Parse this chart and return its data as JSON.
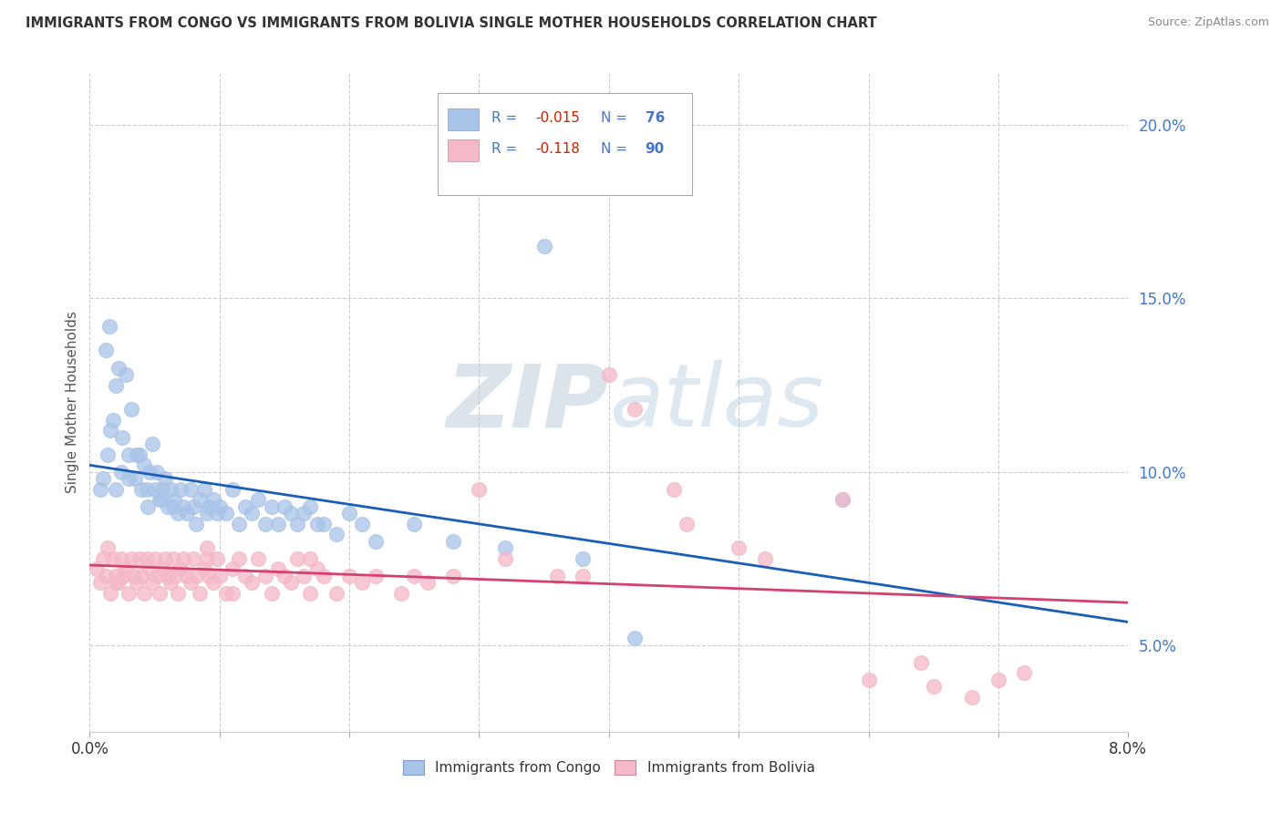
{
  "title": "IMMIGRANTS FROM CONGO VS IMMIGRANTS FROM BOLIVIA SINGLE MOTHER HOUSEHOLDS CORRELATION CHART",
  "source": "Source: ZipAtlas.com",
  "ylabel": "Single Mother Households",
  "xlim": [
    0.0,
    8.0
  ],
  "ylim": [
    2.5,
    21.5
  ],
  "yticks": [
    5.0,
    10.0,
    15.0,
    20.0
  ],
  "xticks_visible": [
    0.0,
    8.0
  ],
  "congo_color": "#a8c4e8",
  "bolivia_color": "#f4b8c8",
  "congo_line_color": "#1a5eb8",
  "bolivia_line_color": "#d44070",
  "legend_text_color": "#4477cc",
  "legend_r_color": "#cc2200",
  "watermark_color": "#c8d8e8",
  "congo_points": [
    [
      0.08,
      9.5
    ],
    [
      0.12,
      13.5
    ],
    [
      0.15,
      14.2
    ],
    [
      0.18,
      11.5
    ],
    [
      0.2,
      12.5
    ],
    [
      0.22,
      13.0
    ],
    [
      0.25,
      11.0
    ],
    [
      0.28,
      12.8
    ],
    [
      0.3,
      10.5
    ],
    [
      0.32,
      11.8
    ],
    [
      0.35,
      9.8
    ],
    [
      0.38,
      10.5
    ],
    [
      0.4,
      9.5
    ],
    [
      0.42,
      10.2
    ],
    [
      0.45,
      9.0
    ],
    [
      0.48,
      10.8
    ],
    [
      0.5,
      9.5
    ],
    [
      0.52,
      10.0
    ],
    [
      0.55,
      9.2
    ],
    [
      0.58,
      9.8
    ],
    [
      0.6,
      9.0
    ],
    [
      0.62,
      9.5
    ],
    [
      0.65,
      9.2
    ],
    [
      0.68,
      8.8
    ],
    [
      0.7,
      9.5
    ],
    [
      0.72,
      9.0
    ],
    [
      0.75,
      8.8
    ],
    [
      0.78,
      9.5
    ],
    [
      0.8,
      9.0
    ],
    [
      0.82,
      8.5
    ],
    [
      0.85,
      9.2
    ],
    [
      0.88,
      9.5
    ],
    [
      0.9,
      8.8
    ],
    [
      0.92,
      9.0
    ],
    [
      0.95,
      9.2
    ],
    [
      0.98,
      8.8
    ],
    [
      1.0,
      9.0
    ],
    [
      1.05,
      8.8
    ],
    [
      1.1,
      9.5
    ],
    [
      1.15,
      8.5
    ],
    [
      1.2,
      9.0
    ],
    [
      1.25,
      8.8
    ],
    [
      1.3,
      9.2
    ],
    [
      1.35,
      8.5
    ],
    [
      1.4,
      9.0
    ],
    [
      1.45,
      8.5
    ],
    [
      1.5,
      9.0
    ],
    [
      1.55,
      8.8
    ],
    [
      1.6,
      8.5
    ],
    [
      1.65,
      8.8
    ],
    [
      1.7,
      9.0
    ],
    [
      1.75,
      8.5
    ],
    [
      1.8,
      8.5
    ],
    [
      1.9,
      8.2
    ],
    [
      2.0,
      8.8
    ],
    [
      2.1,
      8.5
    ],
    [
      2.2,
      8.0
    ],
    [
      2.5,
      8.5
    ],
    [
      2.8,
      8.0
    ],
    [
      3.2,
      7.8
    ],
    [
      3.8,
      7.5
    ],
    [
      4.2,
      5.2
    ],
    [
      3.5,
      16.5
    ],
    [
      5.8,
      9.2
    ],
    [
      0.1,
      9.8
    ],
    [
      0.14,
      10.5
    ],
    [
      0.16,
      11.2
    ],
    [
      0.2,
      9.5
    ],
    [
      0.24,
      10.0
    ],
    [
      0.3,
      9.8
    ],
    [
      0.36,
      10.5
    ],
    [
      0.44,
      9.5
    ],
    [
      0.46,
      10.0
    ],
    [
      0.54,
      9.2
    ],
    [
      0.56,
      9.5
    ],
    [
      0.64,
      9.0
    ]
  ],
  "bolivia_points": [
    [
      0.05,
      7.2
    ],
    [
      0.08,
      6.8
    ],
    [
      0.1,
      7.5
    ],
    [
      0.12,
      7.0
    ],
    [
      0.14,
      7.8
    ],
    [
      0.16,
      6.5
    ],
    [
      0.18,
      7.5
    ],
    [
      0.2,
      7.0
    ],
    [
      0.22,
      6.8
    ],
    [
      0.24,
      7.5
    ],
    [
      0.26,
      7.0
    ],
    [
      0.28,
      7.2
    ],
    [
      0.3,
      6.5
    ],
    [
      0.32,
      7.5
    ],
    [
      0.34,
      7.0
    ],
    [
      0.36,
      6.8
    ],
    [
      0.38,
      7.5
    ],
    [
      0.4,
      7.0
    ],
    [
      0.42,
      6.5
    ],
    [
      0.44,
      7.5
    ],
    [
      0.46,
      7.2
    ],
    [
      0.48,
      6.8
    ],
    [
      0.5,
      7.5
    ],
    [
      0.52,
      7.0
    ],
    [
      0.54,
      6.5
    ],
    [
      0.56,
      7.2
    ],
    [
      0.58,
      7.5
    ],
    [
      0.6,
      7.0
    ],
    [
      0.62,
      6.8
    ],
    [
      0.64,
      7.5
    ],
    [
      0.66,
      7.0
    ],
    [
      0.68,
      6.5
    ],
    [
      0.7,
      7.2
    ],
    [
      0.72,
      7.5
    ],
    [
      0.75,
      7.0
    ],
    [
      0.78,
      6.8
    ],
    [
      0.8,
      7.5
    ],
    [
      0.82,
      7.0
    ],
    [
      0.85,
      6.5
    ],
    [
      0.88,
      7.2
    ],
    [
      0.9,
      7.5
    ],
    [
      0.92,
      7.0
    ],
    [
      0.95,
      6.8
    ],
    [
      0.98,
      7.5
    ],
    [
      1.0,
      7.0
    ],
    [
      1.05,
      6.5
    ],
    [
      1.1,
      7.2
    ],
    [
      1.15,
      7.5
    ],
    [
      1.2,
      7.0
    ],
    [
      1.25,
      6.8
    ],
    [
      1.3,
      7.5
    ],
    [
      1.35,
      7.0
    ],
    [
      1.4,
      6.5
    ],
    [
      1.45,
      7.2
    ],
    [
      1.5,
      7.0
    ],
    [
      1.55,
      6.8
    ],
    [
      1.6,
      7.5
    ],
    [
      1.65,
      7.0
    ],
    [
      1.7,
      6.5
    ],
    [
      1.75,
      7.2
    ],
    [
      1.8,
      7.0
    ],
    [
      1.9,
      6.5
    ],
    [
      2.0,
      7.0
    ],
    [
      2.1,
      6.8
    ],
    [
      2.2,
      7.0
    ],
    [
      2.4,
      6.5
    ],
    [
      2.6,
      6.8
    ],
    [
      2.8,
      7.0
    ],
    [
      3.0,
      9.5
    ],
    [
      3.2,
      7.5
    ],
    [
      3.6,
      7.0
    ],
    [
      4.0,
      12.8
    ],
    [
      4.5,
      9.5
    ],
    [
      5.2,
      7.5
    ],
    [
      5.8,
      9.2
    ],
    [
      6.0,
      4.0
    ],
    [
      6.4,
      4.5
    ],
    [
      6.5,
      3.8
    ],
    [
      6.8,
      3.5
    ],
    [
      7.0,
      4.0
    ],
    [
      7.2,
      4.2
    ],
    [
      4.2,
      11.8
    ],
    [
      5.0,
      7.8
    ],
    [
      3.8,
      7.0
    ],
    [
      2.5,
      7.0
    ],
    [
      1.1,
      6.5
    ],
    [
      0.2,
      6.8
    ],
    [
      0.9,
      7.8
    ],
    [
      1.7,
      7.5
    ],
    [
      4.6,
      8.5
    ]
  ]
}
